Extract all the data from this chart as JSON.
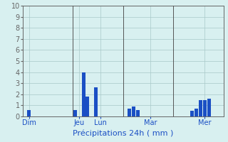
{
  "title": "Précipitations 24h ( mm )",
  "bar_color": "#1a4fc4",
  "bg_color": "#d8f0f0",
  "grid_color": "#a8c8c8",
  "axis_color": "#666666",
  "label_color": "#1a4fc4",
  "ylim": [
    0,
    10
  ],
  "yticks": [
    0,
    1,
    2,
    3,
    4,
    5,
    6,
    7,
    8,
    9,
    10
  ],
  "num_bars": 48,
  "bar_values": [
    0,
    0.6,
    0,
    0,
    0,
    0,
    0,
    0,
    0,
    0,
    0,
    0,
    0.6,
    0,
    4.0,
    1.8,
    0,
    2.6,
    0,
    0,
    0,
    0,
    0,
    0,
    0,
    0.7,
    0.9,
    0.6,
    0,
    0,
    0,
    0,
    0,
    0,
    0,
    0,
    0,
    0,
    0,
    0,
    0.5,
    0.7,
    1.5,
    1.5,
    1.6,
    0,
    0,
    0
  ],
  "bar_width": 0.85,
  "vline_positions": [
    12,
    24,
    36
  ],
  "vline_color": "#555555",
  "day_labels": [
    "Dim",
    "Jeu",
    "Lun",
    "Mar",
    "Mer"
  ],
  "day_positions": [
    1,
    13,
    18,
    30,
    43
  ],
  "xlabel_fontsize": 8,
  "ylabel_fontsize": 7,
  "tick_fontsize": 7
}
